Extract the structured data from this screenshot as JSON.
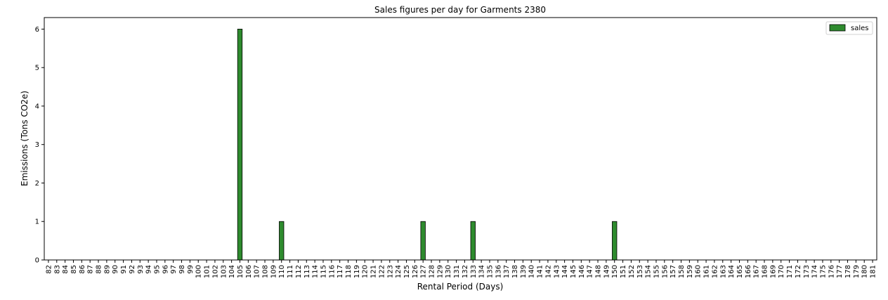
{
  "chart_data": {
    "type": "bar",
    "title": "Sales figures per day for Garments 2380",
    "xlabel": "Rental Period (Days)",
    "ylabel": "Emissions (Tons CO2e)",
    "ylim": [
      0,
      6.3
    ],
    "yticks": [
      "0",
      "1",
      "2",
      "3",
      "4",
      "5",
      "6"
    ],
    "categories": [
      "82",
      "83",
      "84",
      "85",
      "86",
      "87",
      "88",
      "89",
      "90",
      "91",
      "92",
      "93",
      "94",
      "95",
      "96",
      "97",
      "98",
      "99",
      "100",
      "101",
      "102",
      "103",
      "104",
      "105",
      "106",
      "107",
      "108",
      "109",
      "110",
      "111",
      "112",
      "113",
      "114",
      "115",
      "116",
      "117",
      "118",
      "119",
      "120",
      "121",
      "122",
      "123",
      "124",
      "125",
      "126",
      "127",
      "128",
      "129",
      "130",
      "131",
      "132",
      "133",
      "134",
      "135",
      "136",
      "137",
      "138",
      "139",
      "140",
      "141",
      "142",
      "143",
      "144",
      "145",
      "146",
      "147",
      "148",
      "149",
      "150",
      "151",
      "152",
      "153",
      "154",
      "155",
      "156",
      "157",
      "158",
      "159",
      "160",
      "161",
      "162",
      "163",
      "164",
      "165",
      "166",
      "167",
      "168",
      "169",
      "170",
      "171",
      "172",
      "173",
      "174",
      "175",
      "176",
      "177",
      "178",
      "179",
      "180",
      "181"
    ],
    "series": [
      {
        "name": "sales",
        "color": "#2e8b2e",
        "values": [
          0,
          0,
          0,
          0,
          0,
          0,
          0,
          0,
          0,
          0,
          0,
          0,
          0,
          0,
          0,
          0,
          0,
          0,
          0,
          0,
          0,
          0,
          0,
          6,
          0,
          0,
          0,
          0,
          1,
          0,
          0,
          0,
          0,
          0,
          0,
          0,
          0,
          0,
          0,
          0,
          0,
          0,
          0,
          0,
          0,
          1,
          0,
          0,
          0,
          0,
          0,
          1,
          0,
          0,
          0,
          0,
          0,
          0,
          0,
          0,
          0,
          0,
          0,
          0,
          0,
          0,
          0,
          0,
          1,
          0,
          0,
          0,
          0,
          0,
          0,
          0,
          0,
          0,
          0,
          0,
          0,
          0,
          0,
          0,
          0,
          0,
          0,
          0,
          0,
          0,
          0,
          0,
          0,
          0,
          0,
          0,
          0,
          0,
          0,
          0
        ]
      }
    ],
    "legend_position": "top-right",
    "grid": false
  }
}
